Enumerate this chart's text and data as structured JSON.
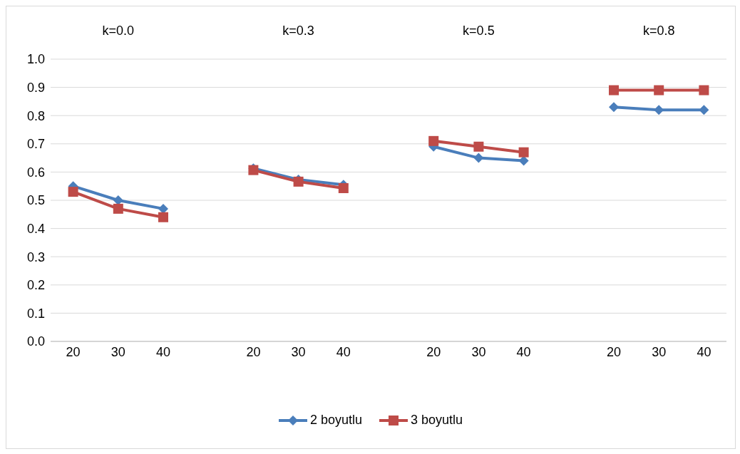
{
  "chart_data": {
    "type": "line",
    "categories": [
      "20",
      "30",
      "40",
      null,
      "20",
      "30",
      "40",
      null,
      "20",
      "30",
      "40",
      null,
      "20",
      "30",
      "40"
    ],
    "series": [
      {
        "name": "2 boyutlu",
        "color": "#4a7ebb",
        "marker": "diamond",
        "values": [
          0.55,
          0.5,
          0.47,
          null,
          0.613,
          0.573,
          0.555,
          null,
          0.69,
          0.65,
          0.64,
          null,
          0.83,
          0.82,
          0.82
        ]
      },
      {
        "name": "3 boyutlu",
        "color": "#be4b48",
        "marker": "square",
        "values": [
          0.53,
          0.47,
          0.44,
          null,
          0.607,
          0.566,
          0.543,
          null,
          0.71,
          0.69,
          0.67,
          null,
          0.89,
          0.89,
          0.89
        ]
      }
    ],
    "annotations": [
      "k=0.0",
      "k=0.3",
      "k=0.5",
      "k=0.8"
    ],
    "ylim": [
      0,
      1
    ],
    "yticks": [
      {
        "value": 0,
        "label": "0.0"
      },
      {
        "value": 0.1,
        "label": "0.1"
      },
      {
        "value": 0.2,
        "label": "0.2"
      },
      {
        "value": 0.3,
        "label": "0.3"
      },
      {
        "value": 0.4,
        "label": "0.4"
      },
      {
        "value": 0.5,
        "label": "0.5"
      },
      {
        "value": 0.6,
        "label": "0.6"
      },
      {
        "value": 0.7,
        "label": "0.7"
      },
      {
        "value": 0.8,
        "label": "0.8"
      },
      {
        "value": 0.9,
        "label": "0.9"
      },
      {
        "value": 1,
        "label": "1.0"
      }
    ],
    "grid": "y",
    "legend": "bottom"
  }
}
